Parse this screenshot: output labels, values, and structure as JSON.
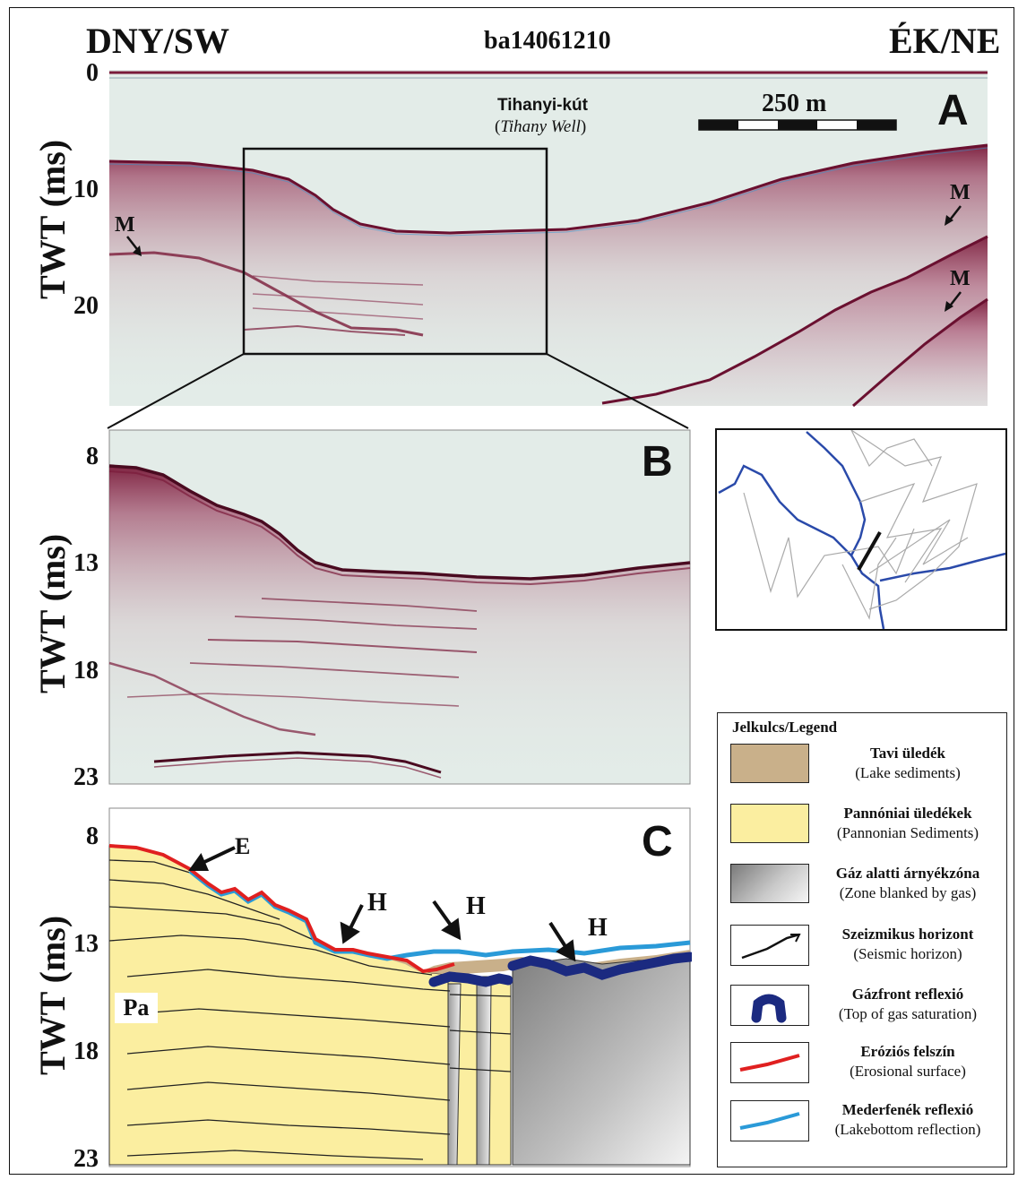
{
  "header": {
    "left": "DNY/SW",
    "center": "ba14061210",
    "right": "ÉK/NE"
  },
  "panel_a": {
    "letter": "A",
    "ylabel": "TWT (ms)",
    "ticks": [
      "0",
      "10",
      "20"
    ],
    "well_label": "Tihanyi-kút",
    "well_label_en": "Tihany Well",
    "scale_label": "250 m",
    "marker_m": "M"
  },
  "panel_b": {
    "letter": "B",
    "ylabel": "TWT (ms)",
    "ticks": [
      "8",
      "13",
      "18",
      "23"
    ]
  },
  "panel_c": {
    "letter": "C",
    "ylabel": "TWT (ms)",
    "ticks": [
      "8",
      "13",
      "18",
      "23"
    ],
    "label_e": "E",
    "label_h": "H",
    "label_pa": "Pa"
  },
  "legend": {
    "title": "Jelkulcs/Legend",
    "items": [
      {
        "hu": "Tavi üledék",
        "en": "(Lake sediments)",
        "icon": "lake-sediment-swatch",
        "color": "#c9b08a"
      },
      {
        "hu": "Pannóniai üledékek",
        "en": "(Pannonian Sediments)",
        "icon": "pannonian-swatch",
        "color": "#fbeea0"
      },
      {
        "hu": "Gáz alatti árnyékzóna",
        "en": "(Zone blanked by gas)",
        "icon": "gas-shadow-swatch",
        "color": "#9a9a9a"
      },
      {
        "hu": "Szeizmikus horizont",
        "en": "(Seismic horizon)",
        "icon": "horizon-line-icon",
        "color": "#111111"
      },
      {
        "hu": "Gázfront reflexió",
        "en": "(Top of gas saturation)",
        "icon": "gas-front-icon",
        "color": "#1b2a80"
      },
      {
        "hu": "Eróziós felszín",
        "en": "(Erosional surface)",
        "icon": "erosion-line-icon",
        "color": "#e02020"
      },
      {
        "hu": "Mederfenék reflexió",
        "en": "(Lakebottom reflection)",
        "icon": "lakebottom-line-icon",
        "color": "#2a9ad8"
      }
    ]
  },
  "colors": {
    "seismic_dark": "#7a1b3a",
    "seismic_bg": "#e3ece8",
    "pannonian": "#fbeea0",
    "lake_sediment": "#c9b08a",
    "erosion": "#e02020",
    "lakebottom": "#2a9ad8",
    "gas_front": "#1b2a80",
    "map_line": "#2a4aaa"
  }
}
